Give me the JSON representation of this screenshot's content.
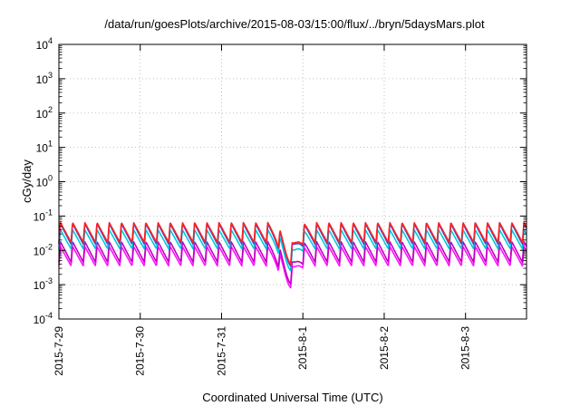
{
  "chart_data": {
    "type": "line",
    "title": "/data/run/goesPlots/archive/2015-08-03/15:00/flux/../bryn/5daysMars.plot",
    "xlabel": "Coordinated Universal Time (UTC)",
    "ylabel": "cGy/day",
    "yscale": "log",
    "ylim": [
      0.0001,
      10000
    ],
    "xlim_days": [
      "2015-07-29",
      "2015-08-03 18:00"
    ],
    "x_tick_labels": [
      "2015-7-29",
      "2015-7-30",
      "2015-7-31",
      "2015-8-1",
      "2015-8-2",
      "2015-8-3"
    ],
    "y_tick_labels": [
      {
        "base": "10",
        "exp": "-4"
      },
      {
        "base": "10",
        "exp": "-3"
      },
      {
        "base": "10",
        "exp": "-2"
      },
      {
        "base": "10",
        "exp": "-1"
      },
      {
        "base": "10",
        "exp": "0"
      },
      {
        "base": "10",
        "exp": "1"
      },
      {
        "base": "10",
        "exp": "2"
      },
      {
        "base": "10",
        "exp": "3"
      },
      {
        "base": "10",
        "exp": "4"
      }
    ],
    "grid": true,
    "pattern": {
      "sawtooth_period_hours": 3.6,
      "dip": {
        "center": "2015-07-31 20:00",
        "depth_decades": 0.65
      }
    },
    "series": [
      {
        "color": "#ff2020",
        "peak": 0.065,
        "trough": 0.017
      },
      {
        "color": "#3050e0",
        "peak": 0.06,
        "trough": 0.015
      },
      {
        "color": "#00c8d8",
        "peak": 0.04,
        "trough": 0.011
      },
      {
        "color": "#c000c0",
        "peak": 0.018,
        "trough": 0.0045
      },
      {
        "color": "#ff10ff",
        "peak": 0.013,
        "trough": 0.0035
      }
    ]
  }
}
